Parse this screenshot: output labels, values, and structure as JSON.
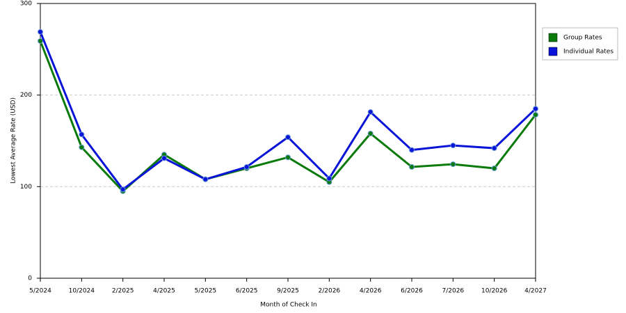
{
  "chart_data": {
    "type": "line",
    "x_label": "Month of Check In",
    "y_label": "Lowest Average Rate (USD)",
    "categories": [
      "5/2024",
      "10/2024",
      "2/2025",
      "4/2025",
      "5/2025",
      "6/2025",
      "9/2025",
      "2/2026",
      "4/2026",
      "6/2026",
      "7/2026",
      "10/2026",
      "4/2027"
    ],
    "series": [
      {
        "name": "Group Rates",
        "color": "#0a7a0a",
        "values": [
          259,
          143,
          95,
          135,
          108,
          120,
          132,
          105,
          158,
          121.5,
          124.5,
          120,
          178.5
        ]
      },
      {
        "name": "Individual Rates",
        "color": "#0a14d8",
        "values": [
          269,
          157,
          97,
          131,
          108,
          121.5,
          154,
          109,
          181.5,
          140,
          145,
          142,
          185
        ]
      }
    ],
    "ylim": [
      0,
      300
    ],
    "yticks": [
      0,
      100,
      200,
      300
    ],
    "grid": true,
    "legend": "right"
  }
}
